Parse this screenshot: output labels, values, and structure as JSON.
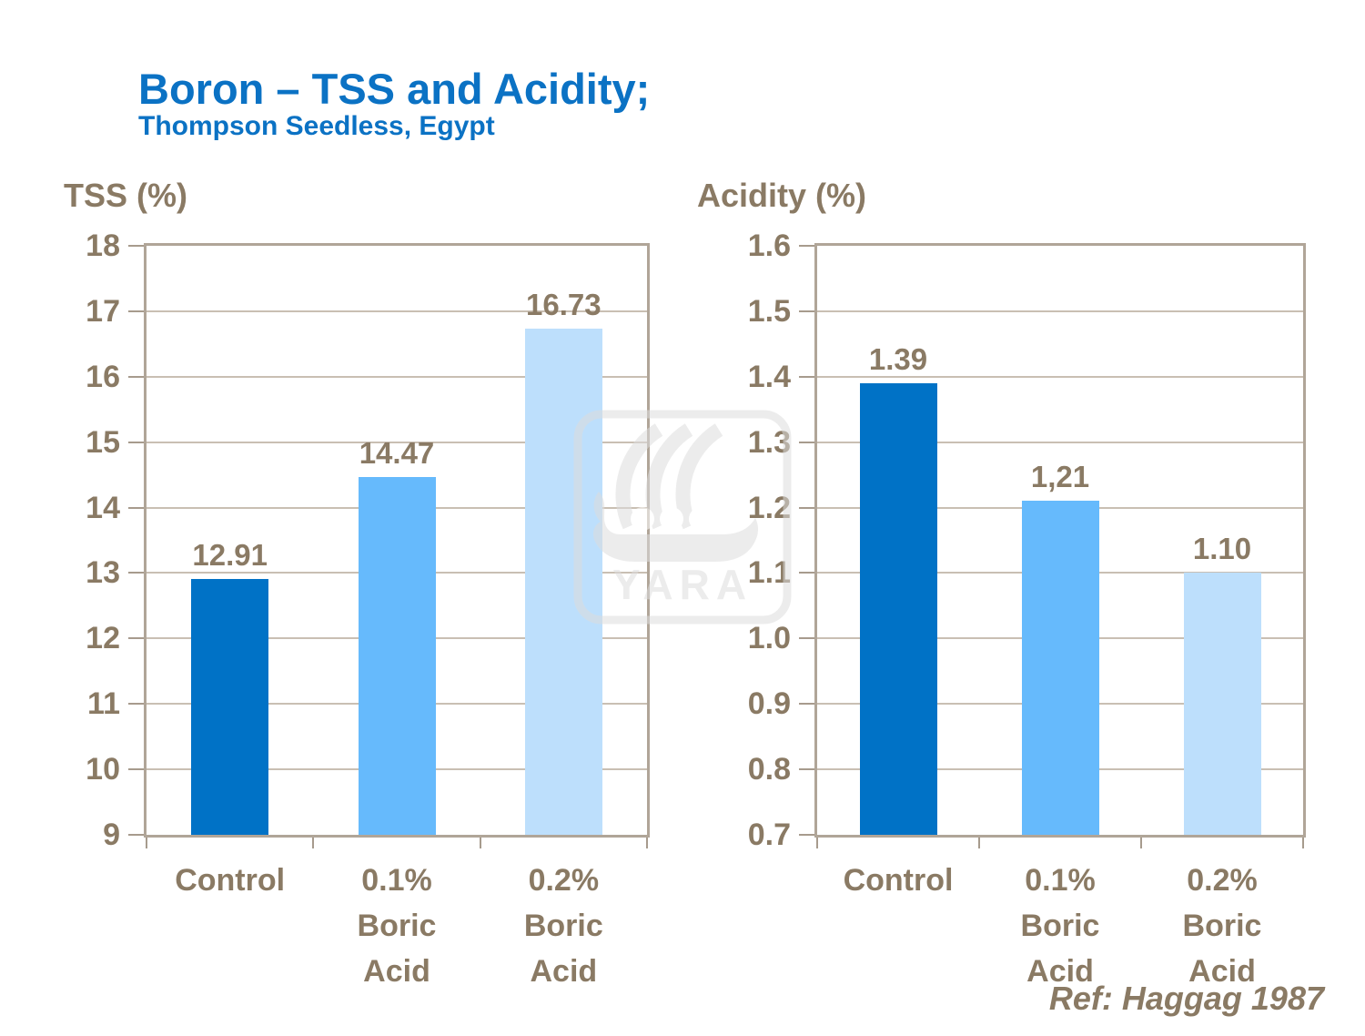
{
  "header": {
    "title": "Boron – TSS and Acidity;",
    "subtitle": "Thompson Seedless, Egypt"
  },
  "footer": {
    "reference": "Ref: Haggag 1987"
  },
  "watermark": {
    "icon": "yara-viking-ship-logo",
    "text": "YARA"
  },
  "colors": {
    "title_blue": "#0b72c4",
    "text_brown": "#8a7a64",
    "gridline": "#c9bfb3",
    "plot_border": "#b0a598",
    "bar_dark_blue": "#0072C6",
    "bar_medium_blue": "#66BAFC",
    "bar_light_blue": "#BDDFFC"
  },
  "chart_data": [
    {
      "type": "bar",
      "axis_title": "TSS (%)",
      "ylabel": "TSS (%)",
      "xlabel": "",
      "categories": [
        [
          "Control"
        ],
        [
          "0.1%",
          "Boric",
          "Acid"
        ],
        [
          "0.2%",
          "Boric",
          "Acid"
        ]
      ],
      "values": [
        12.91,
        14.47,
        16.73
      ],
      "value_labels": [
        "12.91",
        "14.47",
        "16.73"
      ],
      "bar_colors": [
        "#0072C6",
        "#66BAFC",
        "#BDDFFC"
      ],
      "ylim": [
        9,
        18
      ],
      "ytick_labels_top_to_bottom": [
        "18",
        "17",
        "16",
        "15",
        "14",
        "13",
        "12",
        "11",
        "10",
        "9"
      ],
      "grid": true,
      "legend": "none"
    },
    {
      "type": "bar",
      "axis_title": "Acidity (%)",
      "ylabel": "Acidity (%)",
      "xlabel": "",
      "categories": [
        [
          "Control"
        ],
        [
          "0.1%",
          "Boric",
          "Acid"
        ],
        [
          "0.2%",
          "Boric",
          "Acid"
        ]
      ],
      "values": [
        1.39,
        1.21,
        1.1
      ],
      "value_labels": [
        "1.39",
        "1,21",
        "1.10"
      ],
      "bar_colors": [
        "#0072C6",
        "#66BAFC",
        "#BDDFFC"
      ],
      "ylim": [
        0.7,
        1.6
      ],
      "ytick_labels_top_to_bottom": [
        "1.6",
        "1.5",
        "1.4",
        "1.3",
        "1.2",
        "1.1",
        "1.0",
        "0.9",
        "0.8",
        "0.7"
      ],
      "grid": true,
      "legend": "none"
    }
  ]
}
